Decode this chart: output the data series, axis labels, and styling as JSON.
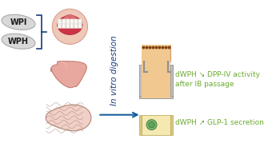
{
  "background_color": "#ffffff",
  "text_wpi": "WPI",
  "text_wph": "WPH",
  "label_vitro": "In vitro digestion",
  "label_dpp": "dWPH ↘ DPP-IV activity\nafter IB passage",
  "label_glp": "dWPH ↗ GLP-1 secretion",
  "text_color_green": "#6aaa2e",
  "pill_color": "#d8d8d8",
  "pill_text_color": "#1a1a1a",
  "bracket_color": "#1a3a7a",
  "arrow_color": "#1a5fa0",
  "vitro_text_color": "#1a3a7a",
  "figsize": [
    3.45,
    1.89
  ],
  "dpi": 100
}
